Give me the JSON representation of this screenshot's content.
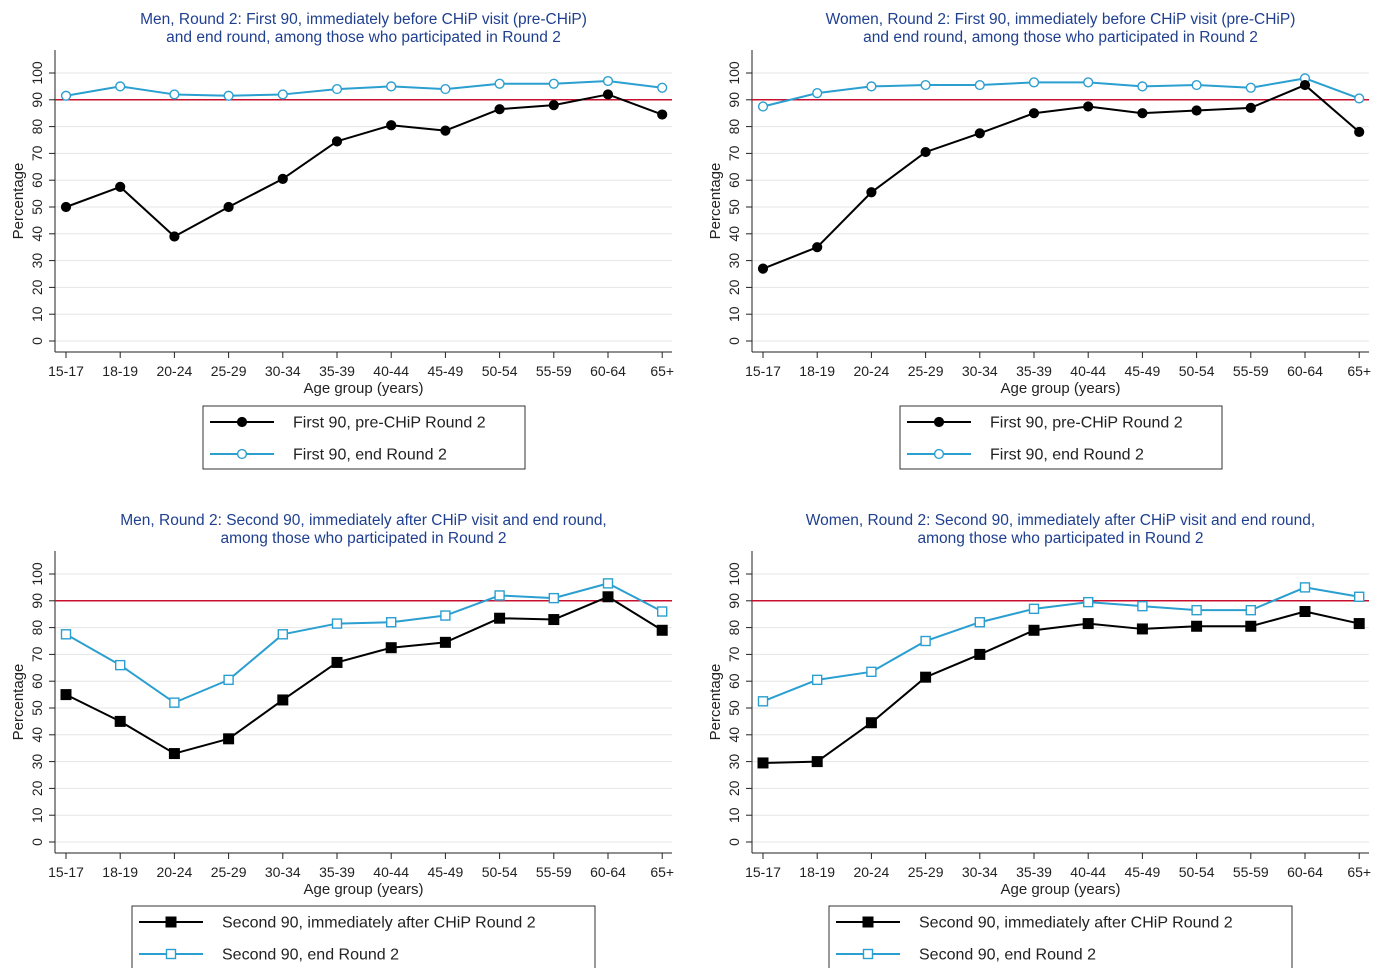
{
  "chart_data": [
    {
      "type": "line",
      "title": [
        "Men, Round 2: First 90, immediately before CHiP visit (pre-CHiP)",
        "and end round, among those who participated in Round 2"
      ],
      "xlabel": "Age group (years)",
      "ylabel": "Percentage",
      "categories": [
        "15-17",
        "18-19",
        "20-24",
        "25-29",
        "30-34",
        "35-39",
        "40-44",
        "45-49",
        "50-54",
        "55-59",
        "60-64",
        "65+"
      ],
      "ylim": [
        0,
        100
      ],
      "yticks": [
        0,
        10,
        20,
        30,
        40,
        50,
        60,
        70,
        80,
        90,
        100
      ],
      "grid": true,
      "reference_line": 90,
      "series": [
        {
          "name": "First 90, pre-CHiP Round 2",
          "marker": "filled-circle",
          "color": "#000000",
          "values": [
            50,
            57.5,
            39,
            50,
            60.5,
            74.5,
            80.5,
            78.5,
            86.5,
            88,
            92,
            84.5
          ]
        },
        {
          "name": "First 90, end Round 2",
          "marker": "hollow-circle",
          "color": "#2a9fd0",
          "values": [
            91.5,
            95,
            92,
            91.5,
            92,
            94,
            95,
            94,
            96,
            96,
            97,
            94.5
          ]
        }
      ]
    },
    {
      "type": "line",
      "title": [
        "Women, Round 2: First 90, immediately before CHiP visit (pre-CHiP)",
        "and end round, among those who participated in Round 2"
      ],
      "xlabel": "Age group (years)",
      "ylabel": "Percentage",
      "categories": [
        "15-17",
        "18-19",
        "20-24",
        "25-29",
        "30-34",
        "35-39",
        "40-44",
        "45-49",
        "50-54",
        "55-59",
        "60-64",
        "65+"
      ],
      "ylim": [
        0,
        100
      ],
      "yticks": [
        0,
        10,
        20,
        30,
        40,
        50,
        60,
        70,
        80,
        90,
        100
      ],
      "grid": true,
      "reference_line": 90,
      "series": [
        {
          "name": "First 90, pre-CHiP Round 2",
          "marker": "filled-circle",
          "color": "#000000",
          "values": [
            27,
            35,
            55.5,
            70.5,
            77.5,
            85,
            87.5,
            85,
            86,
            87,
            95.5,
            78
          ]
        },
        {
          "name": "First 90, end Round 2",
          "marker": "hollow-circle",
          "color": "#2a9fd0",
          "values": [
            87.5,
            92.5,
            95,
            95.5,
            95.5,
            96.5,
            96.5,
            95,
            95.5,
            94.5,
            98,
            90.5
          ]
        }
      ]
    },
    {
      "type": "line",
      "title": [
        "Men, Round 2: Second 90, immediately after CHiP visit and end round,",
        "among those who participated in Round 2"
      ],
      "xlabel": "Age group (years)",
      "ylabel": "Percentage",
      "categories": [
        "15-17",
        "18-19",
        "20-24",
        "25-29",
        "30-34",
        "35-39",
        "40-44",
        "45-49",
        "50-54",
        "55-59",
        "60-64",
        "65+"
      ],
      "ylim": [
        0,
        100
      ],
      "yticks": [
        0,
        10,
        20,
        30,
        40,
        50,
        60,
        70,
        80,
        90,
        100
      ],
      "grid": true,
      "reference_line": 90,
      "series": [
        {
          "name": "Second 90, immediately after CHiP Round 2",
          "marker": "filled-square",
          "color": "#000000",
          "values": [
            55,
            45,
            33,
            38.5,
            53,
            67,
            72.5,
            74.5,
            83.5,
            83,
            91.5,
            79
          ]
        },
        {
          "name": "Second 90, end Round 2",
          "marker": "hollow-square",
          "color": "#2a9fd0",
          "values": [
            77.5,
            66,
            52,
            60.5,
            77.5,
            81.5,
            82,
            84.5,
            92,
            91,
            96.5,
            86
          ]
        }
      ]
    },
    {
      "type": "line",
      "title": [
        "Women, Round 2: Second 90, immediately after CHiP visit and end round,",
        "among those who participated in Round 2"
      ],
      "xlabel": "Age group (years)",
      "ylabel": "Percentage",
      "categories": [
        "15-17",
        "18-19",
        "20-24",
        "25-29",
        "30-34",
        "35-39",
        "40-44",
        "45-49",
        "50-54",
        "55-59",
        "60-64",
        "65+"
      ],
      "ylim": [
        0,
        100
      ],
      "yticks": [
        0,
        10,
        20,
        30,
        40,
        50,
        60,
        70,
        80,
        90,
        100
      ],
      "grid": true,
      "reference_line": 90,
      "series": [
        {
          "name": "Second 90, immediately after CHiP Round 2",
          "marker": "filled-square",
          "color": "#000000",
          "values": [
            29.5,
            30,
            44.5,
            61.5,
            70,
            79,
            81.5,
            79.5,
            80.5,
            80.5,
            86,
            81.5
          ]
        },
        {
          "name": "Second 90, end Round 2",
          "marker": "hollow-square",
          "color": "#2a9fd0",
          "values": [
            52.5,
            60.5,
            63.5,
            75,
            82,
            87,
            89.5,
            88,
            86.5,
            86.5,
            95,
            91.5
          ]
        }
      ]
    }
  ],
  "colors": {
    "title": "#1f3f8f",
    "reference_line": "#c8102e",
    "grid": "#e6e6e6",
    "axis": "#222222"
  }
}
